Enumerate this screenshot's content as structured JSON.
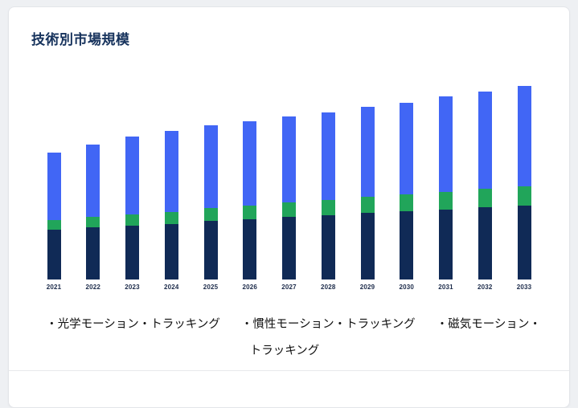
{
  "page": {
    "title": "技術別市場規模"
  },
  "colors": {
    "navy": "#102a56",
    "green": "#21a55a",
    "blue": "#4166f5",
    "card_bg": "#ffffff",
    "page_bg": "#eef0f3",
    "title_text": "#16325c"
  },
  "legend": {
    "items": [
      "・光学モーション・トラッキング",
      "・慣性モーション・トラッキング",
      "・磁気モーション・トラッキング"
    ]
  },
  "chart_data": {
    "type": "bar",
    "stacked": true,
    "title": "技術別市場規模",
    "xlabel": "",
    "ylabel": "",
    "ylim": [
      0,
      260
    ],
    "grid": false,
    "legend_position": "bottom",
    "categories": [
      "2021",
      "2022",
      "2023",
      "2024",
      "2025",
      "2026",
      "2027",
      "2028",
      "2029",
      "2030",
      "2031",
      "2032",
      "2033"
    ],
    "series": [
      {
        "name": "光学モーション・トラッキング",
        "color_key": "navy",
        "values": [
          62,
          65,
          67,
          69,
          73,
          75,
          78,
          80,
          83,
          85,
          87,
          90,
          92
        ]
      },
      {
        "name": "慣性モーション・トラッキング",
        "color_key": "green",
        "values": [
          12,
          13,
          14,
          15,
          16,
          17,
          18,
          19,
          20,
          21,
          22,
          23,
          24
        ]
      },
      {
        "name": "磁気モーション・トラッキング",
        "color_key": "blue",
        "values": [
          84,
          90,
          97,
          101,
          103,
          105,
          107,
          109,
          112,
          114,
          119,
          121,
          125
        ]
      }
    ]
  }
}
